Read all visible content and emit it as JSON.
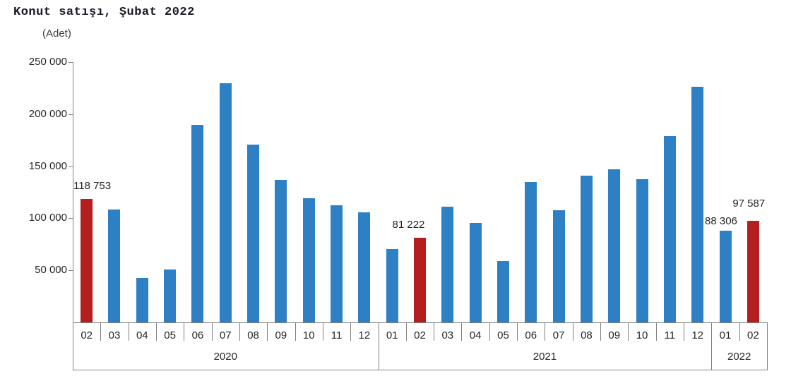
{
  "title": "Konut satışı, Şubat 2022",
  "unit_label": "(Adet)",
  "colors": {
    "bar_default": "#2E80C4",
    "bar_highlight": "#B41E1E",
    "axis": "#808080",
    "text": "#262626",
    "title_text": "#191923"
  },
  "chart_data": {
    "type": "bar",
    "title": "Konut satışı, Şubat 2022",
    "ylabel": "(Adet)",
    "ylim": [
      0,
      250000
    ],
    "ytick_step": 50000,
    "yticks": [
      {
        "value": 50000,
        "label": "50 000"
      },
      {
        "value": 100000,
        "label": "100 000"
      },
      {
        "value": 150000,
        "label": "150 000"
      },
      {
        "value": 200000,
        "label": "200 000"
      },
      {
        "value": 250000,
        "label": "250 000"
      }
    ],
    "grid": false,
    "legend": false,
    "bars": [
      {
        "year": "2020",
        "month": "02",
        "value": 118753,
        "highlight": true,
        "label": "118 753"
      },
      {
        "year": "2020",
        "month": "03",
        "value": 108670,
        "highlight": false,
        "label": ""
      },
      {
        "year": "2020",
        "month": "04",
        "value": 42984,
        "highlight": false,
        "label": ""
      },
      {
        "year": "2020",
        "month": "05",
        "value": 50936,
        "highlight": false,
        "label": ""
      },
      {
        "year": "2020",
        "month": "06",
        "value": 190012,
        "highlight": false,
        "label": ""
      },
      {
        "year": "2020",
        "month": "07",
        "value": 229357,
        "highlight": false,
        "label": ""
      },
      {
        "year": "2020",
        "month": "08",
        "value": 170408,
        "highlight": false,
        "label": ""
      },
      {
        "year": "2020",
        "month": "09",
        "value": 136744,
        "highlight": false,
        "label": ""
      },
      {
        "year": "2020",
        "month": "10",
        "value": 119574,
        "highlight": false,
        "label": ""
      },
      {
        "year": "2020",
        "month": "11",
        "value": 112483,
        "highlight": false,
        "label": ""
      },
      {
        "year": "2020",
        "month": "12",
        "value": 105981,
        "highlight": false,
        "label": ""
      },
      {
        "year": "2021",
        "month": "01",
        "value": 70587,
        "highlight": false,
        "label": ""
      },
      {
        "year": "2021",
        "month": "02",
        "value": 81222,
        "highlight": true,
        "label": "81 222"
      },
      {
        "year": "2021",
        "month": "03",
        "value": 111241,
        "highlight": false,
        "label": ""
      },
      {
        "year": "2021",
        "month": "04",
        "value": 95863,
        "highlight": false,
        "label": ""
      },
      {
        "year": "2021",
        "month": "05",
        "value": 59166,
        "highlight": false,
        "label": ""
      },
      {
        "year": "2021",
        "month": "06",
        "value": 134731,
        "highlight": false,
        "label": ""
      },
      {
        "year": "2021",
        "month": "07",
        "value": 107785,
        "highlight": false,
        "label": ""
      },
      {
        "year": "2021",
        "month": "08",
        "value": 141059,
        "highlight": false,
        "label": ""
      },
      {
        "year": "2021",
        "month": "09",
        "value": 147143,
        "highlight": false,
        "label": ""
      },
      {
        "year": "2021",
        "month": "10",
        "value": 137401,
        "highlight": false,
        "label": ""
      },
      {
        "year": "2021",
        "month": "11",
        "value": 178814,
        "highlight": false,
        "label": ""
      },
      {
        "year": "2021",
        "month": "12",
        "value": 226503,
        "highlight": false,
        "label": ""
      },
      {
        "year": "2022",
        "month": "01",
        "value": 88306,
        "highlight": false,
        "label": "88 306"
      },
      {
        "year": "2022",
        "month": "02",
        "value": 97587,
        "highlight": true,
        "label": "97 587"
      }
    ]
  }
}
